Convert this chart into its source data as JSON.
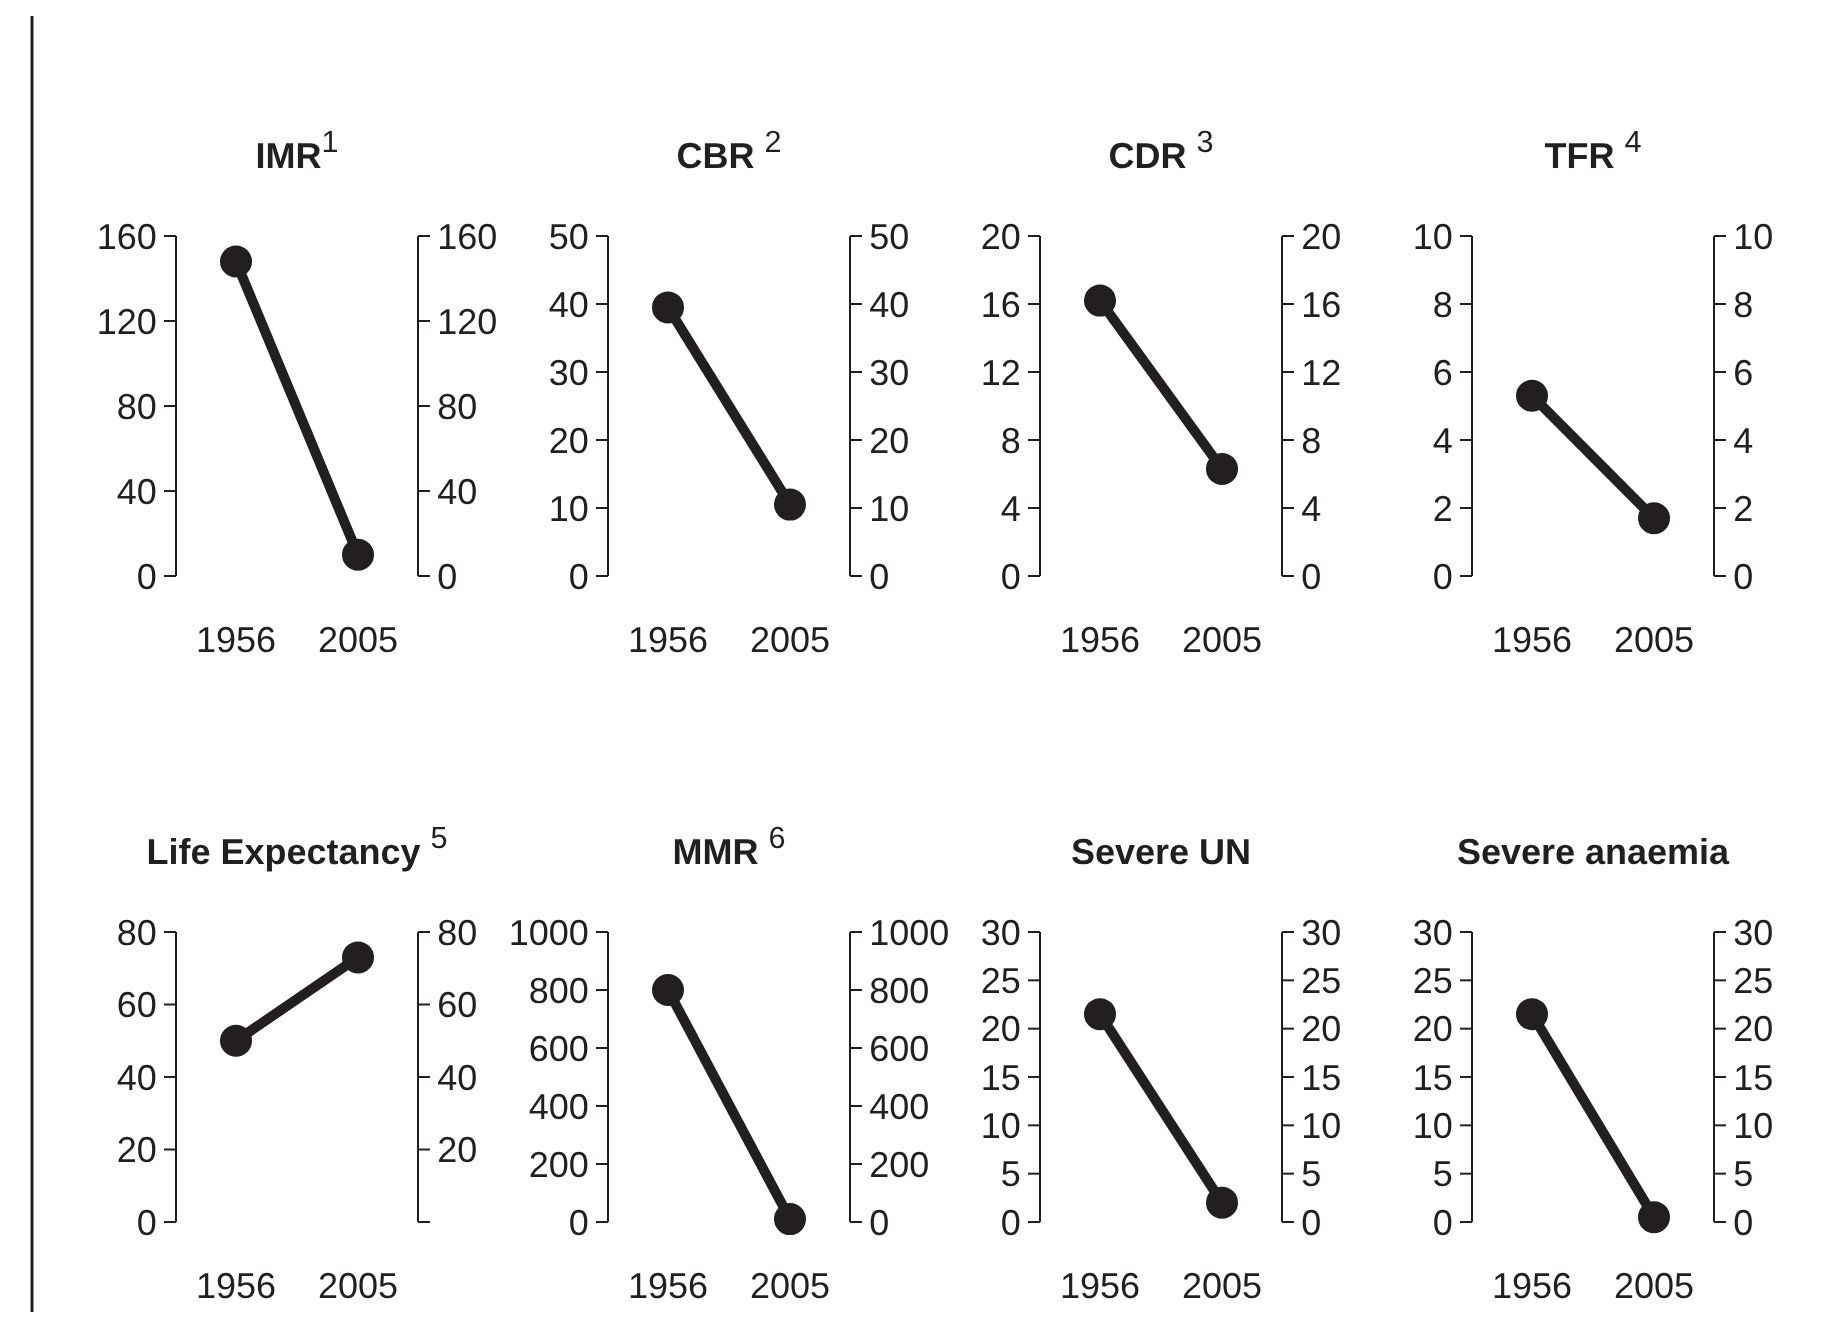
{
  "chart_data": [
    {
      "type": "line",
      "title": "IMR$^{1}$",
      "categories": [
        "1956",
        "2005"
      ],
      "series": [
        {
          "color": "#231f20",
          "values": [
            148,
            10
          ]
        }
      ],
      "ylim": [
        0,
        160
      ],
      "yticks": [
        0,
        40,
        80,
        120,
        160
      ],
      "y2lim": [
        0,
        160
      ],
      "y2ticks": [
        0,
        40,
        80,
        120,
        160
      ],
      "marker": "circle",
      "line_style": "solid",
      "grid": false
    },
    {
      "type": "line",
      "title": "CBR $^{2}$",
      "categories": [
        "1956",
        "2005"
      ],
      "series": [
        {
          "color": "#231f20",
          "values": [
            39.5,
            10.5
          ]
        }
      ],
      "ylim": [
        0,
        50
      ],
      "yticks": [
        0,
        10,
        20,
        30,
        40,
        50
      ],
      "y2lim": [
        0,
        50
      ],
      "y2ticks": [
        0,
        10,
        20,
        30,
        40,
        50
      ],
      "marker": "circle",
      "line_style": "solid",
      "grid": false
    },
    {
      "type": "line",
      "title": "CDR $^{3}$",
      "categories": [
        "1956",
        "2005"
      ],
      "series": [
        {
          "color": "#231f20",
          "values": [
            16.2,
            6.3
          ]
        }
      ],
      "ylim": [
        0,
        20
      ],
      "yticks": [
        0,
        4,
        8,
        12,
        16,
        20
      ],
      "y2lim": [
        0,
        20
      ],
      "y2ticks": [
        0,
        4,
        8,
        12,
        16,
        20
      ],
      "marker": "circle",
      "line_style": "solid",
      "grid": false
    },
    {
      "type": "line",
      "title": "TFR $^{4}$",
      "categories": [
        "1956",
        "2005"
      ],
      "series": [
        {
          "color": "#231f20",
          "values": [
            5.3,
            1.7
          ]
        }
      ],
      "ylim": [
        0,
        10
      ],
      "yticks": [
        0,
        2,
        4,
        6,
        8,
        10
      ],
      "y2lim": [
        0,
        10
      ],
      "y2ticks": [
        0,
        2,
        4,
        6,
        8,
        10
      ],
      "marker": "circle",
      "line_style": "solid",
      "grid": false
    },
    {
      "type": "line",
      "title": "Life Expectancy $^{5}$",
      "categories": [
        "1956",
        "2005"
      ],
      "series": [
        {
          "color": "#231f20",
          "values": [
            50,
            73
          ]
        }
      ],
      "ylim": [
        0,
        80
      ],
      "yticks": [
        0,
        20,
        40,
        60,
        80
      ],
      "y2lim": [
        0,
        80
      ],
      "y2ticks": [
        {
          "value": 0,
          "label": null
        },
        20,
        40,
        60,
        80
      ],
      "marker": "circle",
      "line_style": "solid",
      "grid": false
    },
    {
      "type": "line",
      "title": "MMR $^{6}$",
      "categories": [
        "1956",
        "2005"
      ],
      "series": [
        {
          "color": "#231f20",
          "values": [
            800,
            10
          ]
        }
      ],
      "ylim": [
        0,
        1000
      ],
      "yticks": [
        0,
        200,
        400,
        600,
        800,
        1000
      ],
      "y2lim": [
        0,
        1000
      ],
      "y2ticks": [
        0,
        200,
        400,
        600,
        800,
        1000
      ],
      "marker": "circle",
      "line_style": "solid",
      "grid": false
    },
    {
      "type": "line",
      "title": "Severe UN",
      "categories": [
        "1956",
        "2005"
      ],
      "series": [
        {
          "color": "#231f20",
          "values": [
            21.5,
            2
          ]
        }
      ],
      "ylim": [
        0,
        30
      ],
      "yticks": [
        0,
        5,
        10,
        15,
        20,
        25,
        30
      ],
      "y2lim": [
        0,
        30
      ],
      "y2ticks": [
        0,
        5,
        10,
        15,
        20,
        25,
        30
      ],
      "marker": "circle",
      "line_style": "solid",
      "grid": false
    },
    {
      "type": "line",
      "title": "Severe anaemia",
      "categories": [
        "1956",
        "2005"
      ],
      "series": [
        {
          "color": "#231f20",
          "values": [
            21.5,
            0.5
          ]
        }
      ],
      "ylim": [
        0,
        30
      ],
      "yticks": [
        0,
        5,
        10,
        15,
        20,
        25,
        30
      ],
      "y2lim": [
        0,
        30
      ],
      "y2ticks": [
        0,
        5,
        10,
        15,
        20,
        25,
        30
      ],
      "marker": "circle",
      "line_style": "solid",
      "grid": false
    }
  ]
}
